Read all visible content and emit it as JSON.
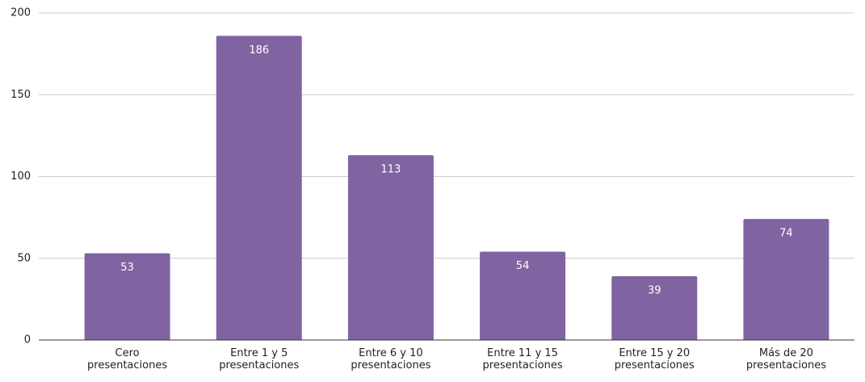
{
  "chart_data": {
    "type": "bar",
    "categories": [
      "Cero presentaciones",
      "Entre 1 y 5 presentaciones",
      "Entre 6 y 10 presentaciones",
      "Entre 11 y 15 presentaciones",
      "Entre 15 y 20 presentaciones",
      "Más de 20 presentaciones"
    ],
    "values": [
      53,
      186,
      113,
      54,
      39,
      74
    ],
    "color": "#8064a2",
    "ylim": [
      0,
      200
    ],
    "yticks": [
      0,
      50,
      100,
      150,
      200
    ],
    "grid": true
  }
}
